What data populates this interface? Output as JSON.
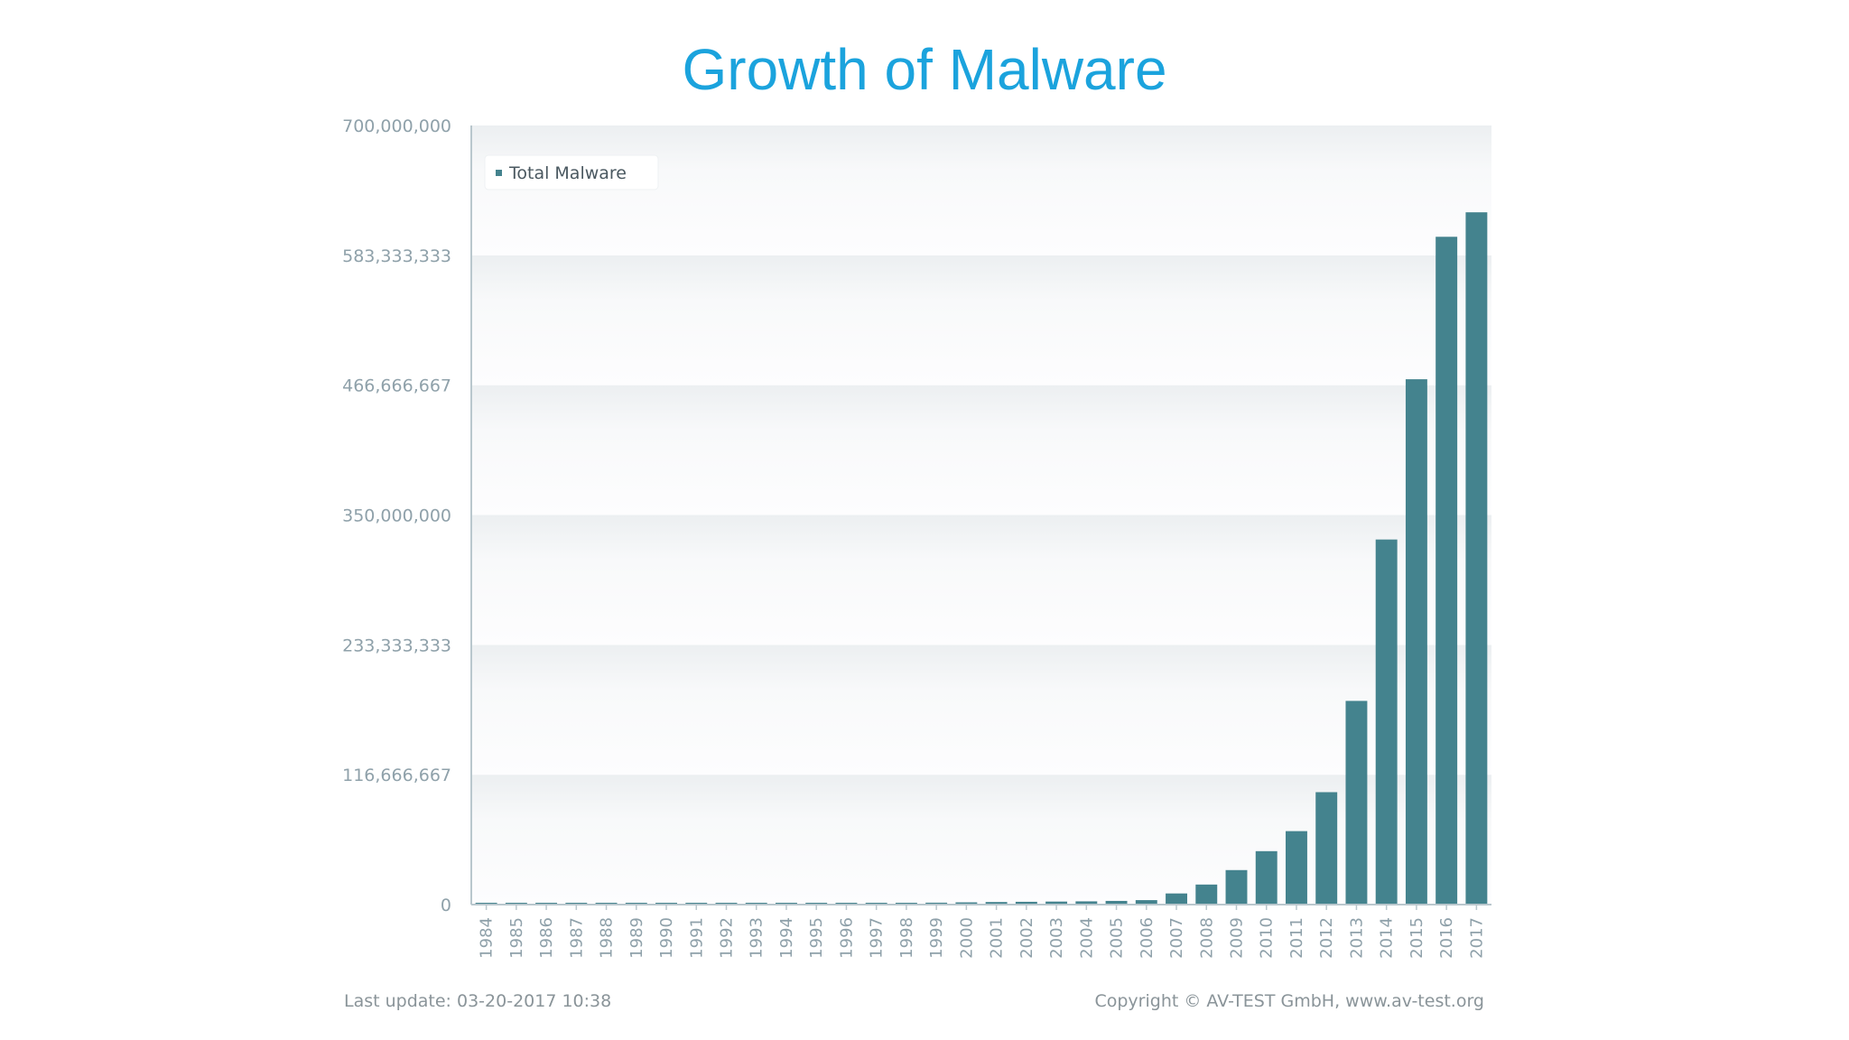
{
  "slide": {
    "title": "Growth of Malware"
  },
  "footer": {
    "last_update": "Last update: 03-20-2017 10:38",
    "copyright": "Copyright © AV-TEST GmbH, www.av-test.org"
  },
  "colors": {
    "bar": "#44838e",
    "title": "#1ba3dd",
    "axis_text": "#8fa1aa"
  },
  "chart_data": {
    "type": "bar",
    "title": "Growth of Malware",
    "xlabel": "",
    "ylabel": "",
    "ylim": [
      0,
      700000000
    ],
    "yticks": [
      0,
      116666667,
      233333333,
      350000000,
      466666667,
      583333333,
      700000000
    ],
    "ytick_labels": [
      "0",
      "116,666,667",
      "233,333,333",
      "350,000,000",
      "466,666,667",
      "583,333,333",
      "700,000,000"
    ],
    "legend_position": "top-left",
    "grid": true,
    "categories": [
      "1984",
      "1985",
      "1986",
      "1987",
      "1988",
      "1989",
      "1990",
      "1991",
      "1992",
      "1993",
      "1994",
      "1995",
      "1996",
      "1997",
      "1998",
      "1999",
      "2000",
      "2001",
      "2002",
      "2003",
      "2004",
      "2005",
      "2006",
      "2007",
      "2008",
      "2009",
      "2010",
      "2011",
      "2012",
      "2013",
      "2014",
      "2015",
      "2016",
      "2017"
    ],
    "series": [
      {
        "name": "Total Malware",
        "values": [
          100000,
          200000,
          200000,
          300000,
          400000,
          500000,
          600000,
          700000,
          800000,
          900000,
          1000000,
          1100000,
          1200000,
          1300000,
          1500000,
          1700000,
          2000000,
          2300000,
          2500000,
          2700000,
          2900000,
          3300000,
          4000000,
          10000000,
          18000000,
          31000000,
          48000000,
          66000000,
          101000000,
          183000000,
          328000000,
          472000000,
          600000000,
          622000000
        ]
      }
    ]
  }
}
